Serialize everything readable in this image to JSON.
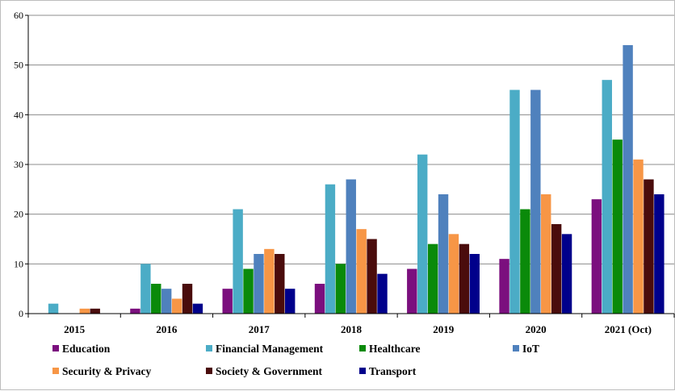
{
  "chart_data": {
    "type": "bar",
    "title": "",
    "xlabel": "",
    "ylabel": "",
    "ylim": [
      0,
      60
    ],
    "yticks": [
      0,
      10,
      20,
      30,
      40,
      50,
      60
    ],
    "grid": true,
    "legend_position": "bottom",
    "categories": [
      "2015",
      "2016",
      "2017",
      "2018",
      "2019",
      "2020",
      "2021 (Oct)"
    ],
    "series": [
      {
        "name": "Education",
        "color": "#7b0f7e",
        "values": [
          0,
          1,
          5,
          6,
          9,
          11,
          23
        ]
      },
      {
        "name": "Financial Management",
        "color": "#4bacc6",
        "values": [
          2,
          10,
          21,
          26,
          32,
          45,
          47
        ]
      },
      {
        "name": "Healthcare",
        "color": "#0a8a0a",
        "values": [
          0,
          6,
          9,
          10,
          14,
          21,
          35
        ]
      },
      {
        "name": "IoT",
        "color": "#4f81bd",
        "values": [
          0,
          5,
          12,
          27,
          24,
          45,
          54
        ]
      },
      {
        "name": "Security & Privacy",
        "color": "#f79646",
        "values": [
          1,
          3,
          13,
          17,
          16,
          24,
          31
        ]
      },
      {
        "name": "Society & Government",
        "color": "#4a0c0c",
        "values": [
          1,
          6,
          12,
          15,
          14,
          18,
          27
        ]
      },
      {
        "name": "Transport",
        "color": "#00008b",
        "values": [
          0,
          2,
          5,
          8,
          12,
          16,
          24
        ]
      }
    ]
  }
}
